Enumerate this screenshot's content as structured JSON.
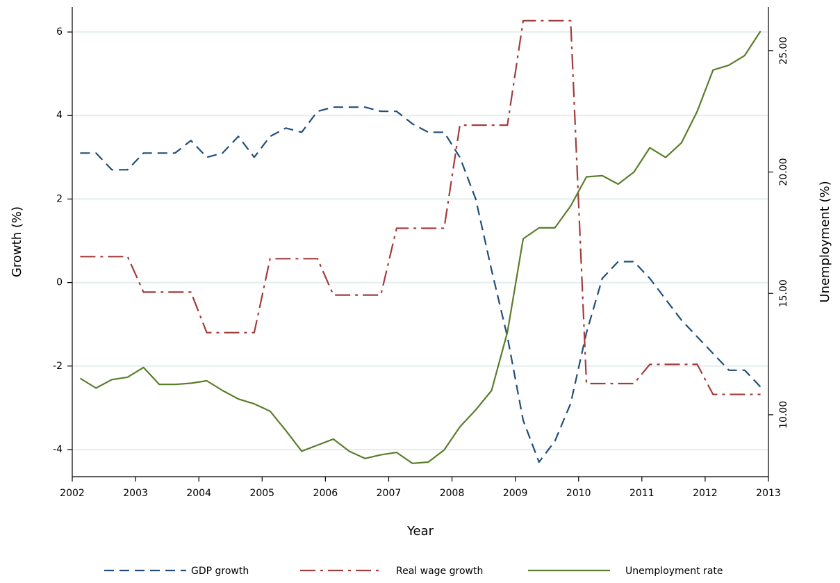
{
  "chart_data": {
    "type": "line",
    "title": "",
    "xlabel": "Year",
    "ylabel": "Growth (%)",
    "y2label": "Unemployment (%)",
    "x_ticks": [
      "2002",
      "2003",
      "2004",
      "2005",
      "2006",
      "2007",
      "2008",
      "2009",
      "2010",
      "2011",
      "2012",
      "2013"
    ],
    "y_ticks": [
      "-4",
      "-2",
      "0",
      "2",
      "4",
      "6"
    ],
    "y2_ticks": [
      "10.00",
      "15.00",
      "20.00",
      "25.00"
    ],
    "xlim": [
      2002,
      2013
    ],
    "ylim": [
      -4.65,
      6.6
    ],
    "y2lim": [
      7.45,
      26.8
    ],
    "grid": true,
    "legend_position": "bottom",
    "series": [
      {
        "name": "GDP growth",
        "axis": "left",
        "color": "#1f4e79",
        "dash": "dash",
        "x": [
          2002.125,
          2002.375,
          2002.625,
          2002.875,
          2003.125,
          2003.375,
          2003.625,
          2003.875,
          2004.125,
          2004.375,
          2004.625,
          2004.875,
          2005.125,
          2005.375,
          2005.625,
          2005.875,
          2006.125,
          2006.375,
          2006.625,
          2006.875,
          2007.125,
          2007.375,
          2007.625,
          2007.875,
          2008.125,
          2008.375,
          2008.625,
          2008.875,
          2009.125,
          2009.375,
          2009.625,
          2009.875,
          2010.125,
          2010.375,
          2010.625,
          2010.875,
          2011.125,
          2011.375,
          2011.625,
          2011.875,
          2012.125,
          2012.375,
          2012.625,
          2012.875
        ],
        "values": [
          3.1,
          3.1,
          2.7,
          2.7,
          3.1,
          3.1,
          3.1,
          3.4,
          3.0,
          3.1,
          3.5,
          3.0,
          3.5,
          3.7,
          3.6,
          4.1,
          4.2,
          4.2,
          4.2,
          4.1,
          4.1,
          3.8,
          3.6,
          3.6,
          3.0,
          2.0,
          0.3,
          -1.3,
          -3.3,
          -4.3,
          -3.8,
          -2.9,
          -1.2,
          0.1,
          0.5,
          0.5,
          0.1,
          -0.4,
          -0.9,
          -1.3,
          -1.7,
          -2.1,
          -2.1,
          -2.5
        ]
      },
      {
        "name": "Real wage growth",
        "axis": "left",
        "color": "#a33b3b",
        "dash": "dashdot",
        "x": [
          2002.125,
          2002.875,
          2003.125,
          2003.875,
          2004.125,
          2004.875,
          2005.125,
          2005.875,
          2006.125,
          2006.875,
          2007.125,
          2007.875,
          2008.125,
          2008.875,
          2009.125,
          2009.875,
          2010.125,
          2010.875,
          2011.125,
          2011.875,
          2012.125,
          2012.875
        ],
        "values": [
          0.62,
          0.62,
          -0.23,
          -0.23,
          -1.2,
          -1.2,
          0.57,
          0.57,
          -0.3,
          -0.3,
          1.3,
          1.3,
          3.77,
          3.77,
          6.27,
          6.27,
          -2.42,
          -2.42,
          -1.96,
          -1.96,
          -2.68,
          -2.68
        ]
      },
      {
        "name": "Unemployment rate",
        "axis": "right",
        "color": "#5a7d2a",
        "dash": "solid",
        "x": [
          2002.125,
          2002.375,
          2002.625,
          2002.875,
          2003.125,
          2003.375,
          2003.625,
          2003.875,
          2004.125,
          2004.375,
          2004.625,
          2004.875,
          2005.125,
          2005.375,
          2005.625,
          2005.875,
          2006.125,
          2006.375,
          2006.625,
          2006.875,
          2007.125,
          2007.375,
          2007.625,
          2007.875,
          2008.125,
          2008.375,
          2008.625,
          2008.875,
          2009.125,
          2009.375,
          2009.625,
          2009.875,
          2010.125,
          2010.375,
          2010.625,
          2010.875,
          2011.125,
          2011.375,
          2011.625,
          2011.875,
          2012.125,
          2012.375,
          2012.625,
          2012.875
        ],
        "values": [
          11.5,
          11.1,
          11.45,
          11.55,
          11.95,
          11.25,
          11.25,
          11.3,
          11.4,
          11.0,
          10.65,
          10.45,
          10.15,
          9.35,
          8.5,
          8.75,
          9.0,
          8.5,
          8.2,
          8.35,
          8.45,
          8.0,
          8.05,
          8.55,
          9.5,
          10.2,
          11.0,
          13.4,
          17.25,
          17.7,
          17.7,
          18.6,
          19.8,
          19.85,
          19.5,
          20.0,
          21.0,
          20.6,
          21.2,
          22.5,
          24.2,
          24.4,
          24.8,
          25.8
        ]
      }
    ]
  }
}
